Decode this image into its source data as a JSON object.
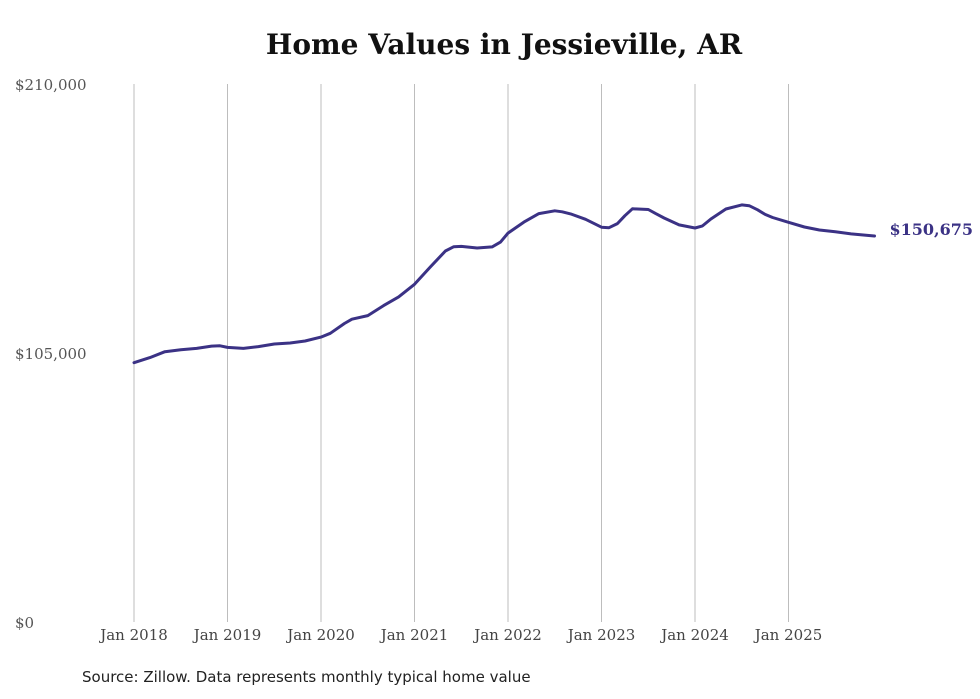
{
  "chart_data": {
    "type": "line",
    "title": "Home Values in Jessieville, AR",
    "xlabel": "",
    "ylabel": "",
    "ylim": [
      0,
      210000
    ],
    "y_ticks": [
      {
        "value": 0,
        "label": "$0"
      },
      {
        "value": 105000,
        "label": "$105,000"
      },
      {
        "value": 210000,
        "label": "$210,000"
      }
    ],
    "x_ticks": [
      "Jan 2018",
      "Jan 2019",
      "Jan 2020",
      "Jan 2021",
      "Jan 2022",
      "Jan 2023",
      "Jan 2024",
      "Jan 2025"
    ],
    "grid": "vertical",
    "series": [
      {
        "name": "Typical home value",
        "color": "#3b3285",
        "x": [
          2018.0,
          2018.17,
          2018.33,
          2018.5,
          2018.67,
          2018.83,
          2018.92,
          2019.0,
          2019.17,
          2019.33,
          2019.5,
          2019.67,
          2019.83,
          2020.0,
          2020.1,
          2020.25,
          2020.33,
          2020.5,
          2020.67,
          2020.83,
          2021.0,
          2021.17,
          2021.33,
          2021.42,
          2021.5,
          2021.67,
          2021.83,
          2021.92,
          2022.0,
          2022.17,
          2022.33,
          2022.5,
          2022.58,
          2022.67,
          2022.83,
          2023.0,
          2023.08,
          2023.17,
          2023.25,
          2023.33,
          2023.5,
          2023.58,
          2023.67,
          2023.83,
          2024.0,
          2024.08,
          2024.17,
          2024.33,
          2024.5,
          2024.58,
          2024.67,
          2024.75,
          2024.83,
          2025.0,
          2025.17,
          2025.33,
          2025.5,
          2025.67,
          2025.83,
          2025.92
        ],
        "values": [
          101200,
          103200,
          105500,
          106300,
          106800,
          107700,
          107800,
          107200,
          106800,
          107500,
          108500,
          108900,
          109700,
          111200,
          112700,
          116500,
          118200,
          119600,
          123500,
          126900,
          131800,
          138600,
          144800,
          146500,
          146600,
          146000,
          146400,
          148300,
          151800,
          156100,
          159400,
          160500,
          160100,
          159300,
          157200,
          154100,
          153900,
          155500,
          158600,
          161300,
          161000,
          159400,
          157700,
          155000,
          153800,
          154600,
          157300,
          161200,
          162800,
          162500,
          160900,
          159100,
          157900,
          156000,
          154200,
          153000,
          152300,
          151500,
          151000,
          150675
        ]
      }
    ],
    "end_label": "$150,675"
  },
  "source_text": "Source: Zillow. Data represents monthly typical home value"
}
